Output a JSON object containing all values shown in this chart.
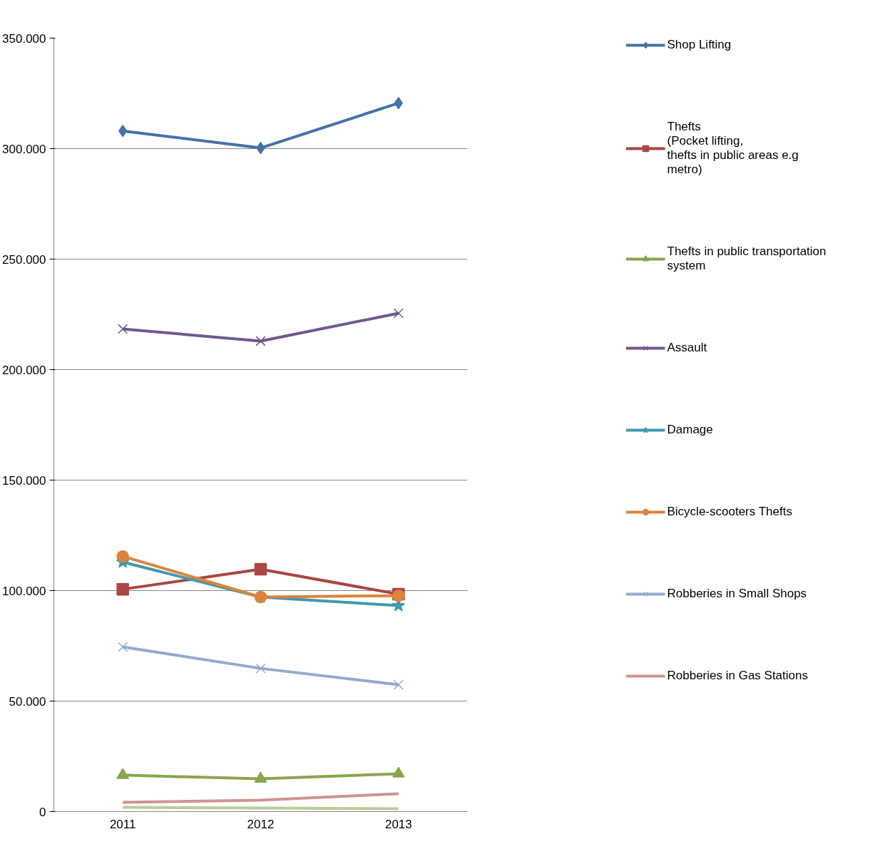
{
  "chart_data": {
    "type": "line",
    "categories": [
      "2011",
      "2012",
      "2013"
    ],
    "ylim": [
      0,
      350000
    ],
    "yticks": [
      {
        "value": 0,
        "label": "0"
      },
      {
        "value": 50000,
        "label": "50.000"
      },
      {
        "value": 100000,
        "label": "100.000"
      },
      {
        "value": 150000,
        "label": "150.000"
      },
      {
        "value": 200000,
        "label": "200.000"
      },
      {
        "value": 250000,
        "label": "250.000"
      },
      {
        "value": 300000,
        "label": "300.000"
      },
      {
        "value": 350000,
        "label": "350.000"
      }
    ],
    "grid": "y",
    "legend": "right",
    "series": [
      {
        "name": "Shop Lifting",
        "color": "#4572a7",
        "marker": "diamond",
        "values": [
          308000,
          300300,
          320600
        ]
      },
      {
        "name": "Thefts\n(Pocket lifting,\nthefts in public areas e.g\nmetro)",
        "color": "#aa4643",
        "marker": "square",
        "values": [
          100600,
          109700,
          98400
        ]
      },
      {
        "name": "Thefts in public transportation\nsystem",
        "color": "#89a54e",
        "marker": "triangle",
        "values": [
          16500,
          14800,
          17100
        ]
      },
      {
        "name": "Assault",
        "color": "#71588f",
        "marker": "cross",
        "values": [
          218400,
          212900,
          225500
        ]
      },
      {
        "name": "Damage",
        "color": "#4198af",
        "marker": "star",
        "values": [
          112900,
          97100,
          93200
        ]
      },
      {
        "name": "Bicycle-scooters Thefts",
        "color": "#db843d",
        "marker": "circle",
        "values": [
          115500,
          97100,
          97700
        ]
      },
      {
        "name": "Robberies in Small Shops",
        "color": "#93a9cf",
        "marker": "cross",
        "values": [
          74500,
          64800,
          57400
        ]
      },
      {
        "name": "Robberies in Gas Stations",
        "color": "#d19392",
        "marker": "none",
        "values": [
          4200,
          5200,
          8100
        ]
      },
      {
        "color": "#b9cd96",
        "marker": "none",
        "values": [
          1900,
          1600,
          1300
        ]
      }
    ]
  }
}
